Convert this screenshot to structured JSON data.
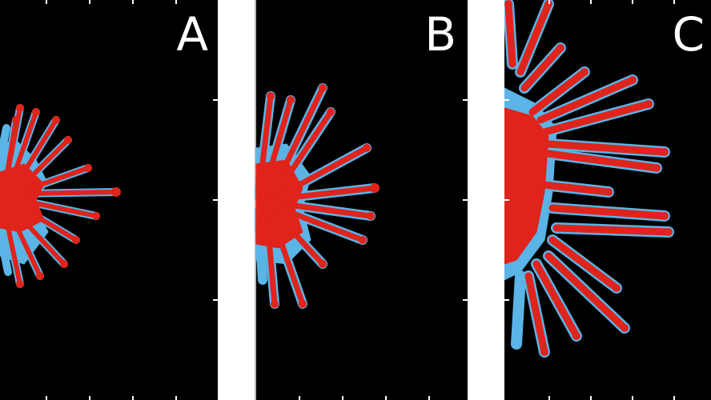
{
  "panels": [
    {
      "id": "A",
      "label": "A"
    },
    {
      "id": "B",
      "label": "B"
    },
    {
      "id": "C",
      "label": "C"
    }
  ],
  "colors": {
    "background": "#ffffff",
    "panel_background": "#000000",
    "core_fill": "#e0231b",
    "halo_fill": "#5ab4e6",
    "tick_color": "#ffffff",
    "label_color": "#ffffff"
  }
}
